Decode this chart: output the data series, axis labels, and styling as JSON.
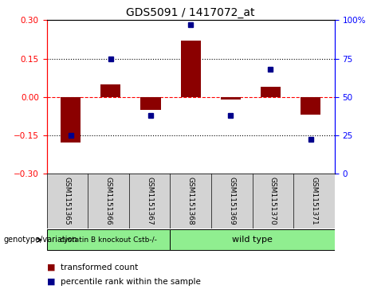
{
  "title": "GDS5091 / 1417072_at",
  "samples": [
    "GSM1151365",
    "GSM1151366",
    "GSM1151367",
    "GSM1151368",
    "GSM1151369",
    "GSM1151370",
    "GSM1151371"
  ],
  "red_bars": [
    -0.18,
    0.05,
    -0.05,
    0.22,
    -0.01,
    0.04,
    -0.07
  ],
  "blue_dots": [
    25,
    75,
    38,
    97,
    38,
    68,
    22
  ],
  "ylim_left": [
    -0.3,
    0.3
  ],
  "ylim_right": [
    0,
    100
  ],
  "left_ticks": [
    -0.3,
    -0.15,
    0.0,
    0.15,
    0.3
  ],
  "right_ticks": [
    0,
    25,
    50,
    75,
    100
  ],
  "right_tick_labels": [
    "0",
    "25",
    "50",
    "75",
    "100%"
  ],
  "hlines_y": [
    -0.15,
    0.0,
    0.15
  ],
  "hline_styles": [
    "dotted",
    "dashed",
    "dotted"
  ],
  "hline_colors": [
    "black",
    "red",
    "black"
  ],
  "bar_color": "#8B0000",
  "dot_color": "#00008B",
  "bar_width": 0.5,
  "genotype_labels": [
    "cystatin B knockout Cstb-/-",
    "wild type"
  ],
  "genotype_group1_samples": [
    0,
    1,
    2
  ],
  "genotype_group2_samples": [
    3,
    4,
    5,
    6
  ],
  "sample_bg_color": "#d3d3d3",
  "geno_color": "#90EE90",
  "background_color": "#ffffff"
}
